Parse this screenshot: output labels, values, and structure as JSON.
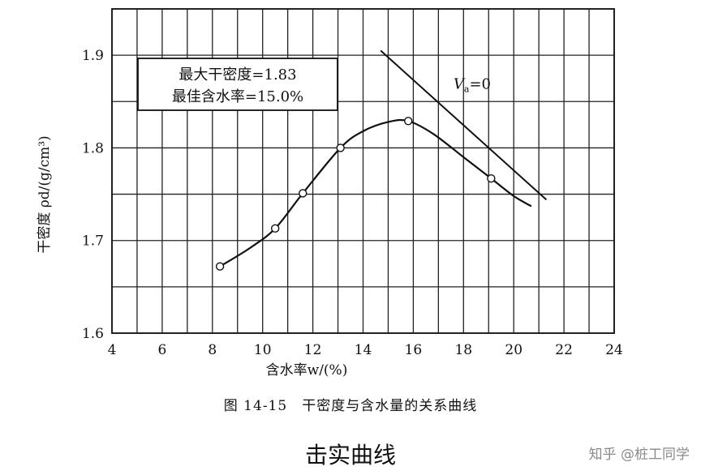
{
  "chart_data": {
    "type": "line",
    "xlabel": "含水率w/(%)",
    "ylabel": "干密度 ρd/(g/cm³)",
    "xlim": [
      4,
      24
    ],
    "ylim": [
      1.6,
      1.95
    ],
    "xticks": [
      4,
      6,
      8,
      10,
      12,
      14,
      16,
      18,
      20,
      22,
      24
    ],
    "yticks": [
      1.6,
      1.7,
      1.8,
      1.9
    ],
    "xtick_labels": [
      "4",
      "6",
      "8",
      "10",
      "12",
      "14",
      "16",
      "18",
      "20",
      "22",
      "24"
    ],
    "ytick_labels": [
      "1.6",
      "1.7",
      "1.8",
      "1.9"
    ],
    "grid": true,
    "series": [
      {
        "points": [
          {
            "x": 8.3,
            "y": 1.672
          },
          {
            "x": 10.5,
            "y": 1.713
          },
          {
            "x": 11.6,
            "y": 1.751
          },
          {
            "x": 13.1,
            "y": 1.8
          },
          {
            "x": 15.8,
            "y": 1.829
          },
          {
            "x": 19.1,
            "y": 1.767
          }
        ],
        "curve": [
          {
            "x": 8.3,
            "y": 1.672
          },
          {
            "x": 9.5,
            "y": 1.692
          },
          {
            "x": 10.5,
            "y": 1.713
          },
          {
            "x": 11.6,
            "y": 1.751
          },
          {
            "x": 13.1,
            "y": 1.8
          },
          {
            "x": 14.0,
            "y": 1.818
          },
          {
            "x": 15.0,
            "y": 1.828
          },
          {
            "x": 15.8,
            "y": 1.829
          },
          {
            "x": 16.8,
            "y": 1.815
          },
          {
            "x": 18.0,
            "y": 1.79
          },
          {
            "x": 19.1,
            "y": 1.767
          },
          {
            "x": 20.0,
            "y": 1.748
          },
          {
            "x": 20.7,
            "y": 1.737
          }
        ]
      },
      {
        "name": "Va=0",
        "label_main": "V",
        "label_sub": "a",
        "label_rest": "=0",
        "label_at": {
          "x": 17.6,
          "y": 1.864
        },
        "line": [
          {
            "x": 14.7,
            "y": 1.905
          },
          {
            "x": 21.3,
            "y": 1.744
          }
        ]
      }
    ],
    "annotations": {
      "line1": "最大干密度=1.83",
      "line2": "最佳含水率=15.0%"
    }
  },
  "caption": "图 14-15　干密度与含水量的关系曲线",
  "subtitle": "击实曲线",
  "watermark": "知乎 @桩工同学"
}
